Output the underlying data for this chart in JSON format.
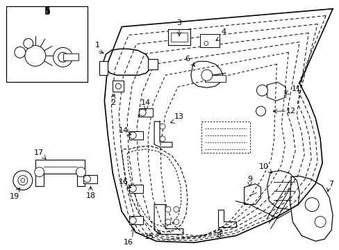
{
  "bg_color": "#ffffff",
  "line_color": "#000000",
  "fig_width": 4.89,
  "fig_height": 3.6,
  "dpi": 100
}
